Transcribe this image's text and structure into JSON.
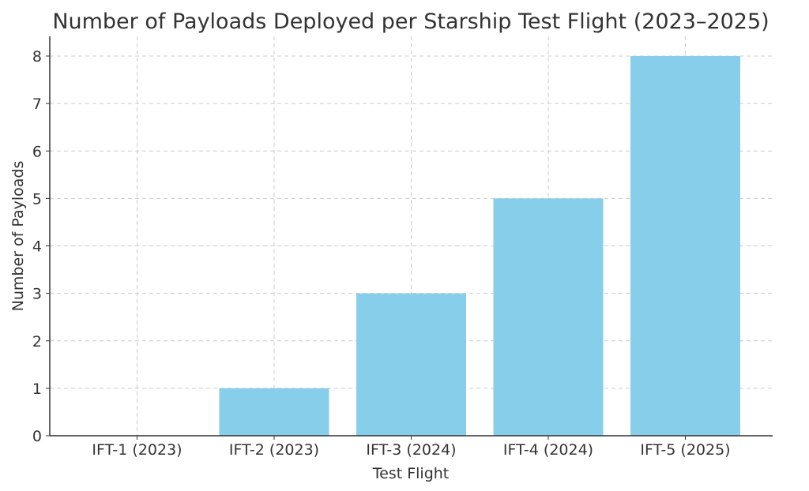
{
  "chart_data": {
    "type": "bar",
    "title": "Number of Payloads Deployed per Starship Test Flight (2023–2025)",
    "xlabel": "Test Flight",
    "ylabel": "Number of Payloads",
    "categories": [
      "IFT-1 (2023)",
      "IFT-2 (2023)",
      "IFT-3 (2024)",
      "IFT-4 (2024)",
      "IFT-5 (2025)"
    ],
    "values": [
      0,
      1,
      3,
      5,
      8
    ],
    "ylim": [
      0,
      8.4
    ],
    "yticks": [
      0,
      1,
      2,
      3,
      4,
      5,
      6,
      7,
      8
    ],
    "grid": true,
    "bar_color": "#87ceeb"
  }
}
